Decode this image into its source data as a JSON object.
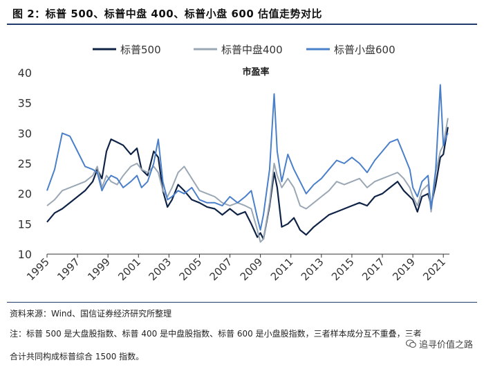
{
  "header": {
    "figure_title": "图 2：标普 500、标普中盘 400、标普小盘 600 估值走势对比"
  },
  "footer": {
    "source": "资料来源：Wind、国信证券经济研究所整理",
    "note_line1": "注：标普 500 是大盘股指数、标普 400 是中盘股指数、标普 600 是小盘股指数，三者样本成分互不重叠，三者",
    "note_line2": "合计共同构成标普综合 1500 指数。",
    "watermark": "追寻价值之路"
  },
  "chart_data": {
    "type": "line",
    "title": "市盈率",
    "xlabel": "",
    "ylabel": "",
    "xlim": [
      1995,
      2021.4
    ],
    "ylim": [
      10,
      40
    ],
    "yticks": [
      10,
      15,
      20,
      25,
      30,
      35,
      40
    ],
    "xticks": [
      "1995",
      "1997",
      "1999",
      "2001",
      "2003",
      "2005",
      "2007",
      "2009",
      "2011",
      "2013",
      "2015",
      "2017",
      "2019",
      "2021"
    ],
    "legend_position": "top",
    "series": [
      {
        "name": "标普500",
        "color": "#0f2346",
        "points": [
          [
            1995.0,
            15.3
          ],
          [
            1995.5,
            16.8
          ],
          [
            1996.0,
            17.5
          ],
          [
            1996.5,
            18.5
          ],
          [
            1997.0,
            19.5
          ],
          [
            1997.5,
            20.5
          ],
          [
            1998.0,
            22.0
          ],
          [
            1998.3,
            24.0
          ],
          [
            1998.6,
            22.5
          ],
          [
            1998.9,
            27.0
          ],
          [
            1999.2,
            29.0
          ],
          [
            1999.6,
            28.5
          ],
          [
            2000.0,
            28.0
          ],
          [
            2000.5,
            26.5
          ],
          [
            2000.9,
            27.5
          ],
          [
            2001.2,
            24.0
          ],
          [
            2001.6,
            23.0
          ],
          [
            2002.0,
            27.0
          ],
          [
            2002.3,
            26.0
          ],
          [
            2002.6,
            20.5
          ],
          [
            2002.9,
            17.8
          ],
          [
            2003.2,
            19.0
          ],
          [
            2003.6,
            21.5
          ],
          [
            2004.0,
            20.5
          ],
          [
            2004.5,
            19.0
          ],
          [
            2005.0,
            18.5
          ],
          [
            2005.5,
            17.8
          ],
          [
            2006.0,
            17.5
          ],
          [
            2006.5,
            16.5
          ],
          [
            2007.0,
            17.5
          ],
          [
            2007.5,
            16.5
          ],
          [
            2008.0,
            17.0
          ],
          [
            2008.4,
            15.0
          ],
          [
            2008.8,
            12.8
          ],
          [
            2009.0,
            13.5
          ],
          [
            2009.2,
            12.5
          ],
          [
            2009.6,
            18.0
          ],
          [
            2009.9,
            23.5
          ],
          [
            2010.1,
            21.0
          ],
          [
            2010.4,
            14.5
          ],
          [
            2010.8,
            15.0
          ],
          [
            2011.2,
            16.0
          ],
          [
            2011.6,
            14.0
          ],
          [
            2012.0,
            13.2
          ],
          [
            2012.5,
            14.5
          ],
          [
            2013.0,
            15.5
          ],
          [
            2013.5,
            16.5
          ],
          [
            2014.0,
            17.0
          ],
          [
            2014.5,
            17.5
          ],
          [
            2015.0,
            18.0
          ],
          [
            2015.5,
            18.5
          ],
          [
            2016.0,
            18.0
          ],
          [
            2016.5,
            19.5
          ],
          [
            2017.0,
            20.0
          ],
          [
            2017.5,
            21.0
          ],
          [
            2018.0,
            22.0
          ],
          [
            2018.4,
            20.5
          ],
          [
            2018.8,
            19.5
          ],
          [
            2019.0,
            19.0
          ],
          [
            2019.3,
            17.0
          ],
          [
            2019.6,
            19.5
          ],
          [
            2020.0,
            20.0
          ],
          [
            2020.2,
            18.0
          ],
          [
            2020.5,
            21.5
          ],
          [
            2020.8,
            26.0
          ],
          [
            2021.0,
            26.5
          ],
          [
            2021.2,
            29.5
          ],
          [
            2021.3,
            31.0
          ]
        ]
      },
      {
        "name": "标普中盘400",
        "color": "#9aa7b4",
        "points": [
          [
            1995.0,
            18.0
          ],
          [
            1995.5,
            19.0
          ],
          [
            1996.0,
            20.5
          ],
          [
            1996.5,
            21.0
          ],
          [
            1997.0,
            21.5
          ],
          [
            1997.5,
            22.0
          ],
          [
            1998.0,
            23.0
          ],
          [
            1998.3,
            24.5
          ],
          [
            1998.6,
            21.0
          ],
          [
            1998.9,
            23.0
          ],
          [
            1999.2,
            22.0
          ],
          [
            1999.6,
            21.5
          ],
          [
            2000.0,
            23.0
          ],
          [
            2000.5,
            24.5
          ],
          [
            2000.9,
            25.0
          ],
          [
            2001.2,
            24.0
          ],
          [
            2001.6,
            23.5
          ],
          [
            2002.0,
            24.5
          ],
          [
            2002.3,
            23.5
          ],
          [
            2002.6,
            20.5
          ],
          [
            2002.9,
            19.5
          ],
          [
            2003.2,
            21.0
          ],
          [
            2003.6,
            23.5
          ],
          [
            2004.0,
            24.5
          ],
          [
            2004.5,
            22.5
          ],
          [
            2005.0,
            20.5
          ],
          [
            2005.5,
            20.0
          ],
          [
            2006.0,
            19.5
          ],
          [
            2006.5,
            18.5
          ],
          [
            2007.0,
            18.0
          ],
          [
            2007.5,
            18.5
          ],
          [
            2008.0,
            18.0
          ],
          [
            2008.4,
            17.5
          ],
          [
            2008.8,
            14.0
          ],
          [
            2009.0,
            12.0
          ],
          [
            2009.2,
            12.5
          ],
          [
            2009.6,
            18.5
          ],
          [
            2009.9,
            25.0
          ],
          [
            2010.1,
            23.0
          ],
          [
            2010.4,
            21.0
          ],
          [
            2010.8,
            22.5
          ],
          [
            2011.2,
            21.0
          ],
          [
            2011.6,
            18.0
          ],
          [
            2012.0,
            17.5
          ],
          [
            2012.5,
            18.5
          ],
          [
            2013.0,
            19.5
          ],
          [
            2013.5,
            20.5
          ],
          [
            2014.0,
            22.0
          ],
          [
            2014.5,
            21.5
          ],
          [
            2015.0,
            22.0
          ],
          [
            2015.5,
            22.5
          ],
          [
            2016.0,
            21.0
          ],
          [
            2016.5,
            22.0
          ],
          [
            2017.0,
            22.5
          ],
          [
            2017.5,
            23.0
          ],
          [
            2018.0,
            23.5
          ],
          [
            2018.4,
            22.5
          ],
          [
            2018.8,
            21.0
          ],
          [
            2019.0,
            19.5
          ],
          [
            2019.3,
            18.0
          ],
          [
            2019.6,
            20.5
          ],
          [
            2020.0,
            21.5
          ],
          [
            2020.2,
            17.0
          ],
          [
            2020.5,
            23.5
          ],
          [
            2020.8,
            27.0
          ],
          [
            2021.0,
            28.0
          ],
          [
            2021.2,
            31.0
          ],
          [
            2021.3,
            32.5
          ]
        ]
      },
      {
        "name": "标普小盘600",
        "color": "#4a7fc9",
        "points": [
          [
            1995.0,
            20.5
          ],
          [
            1995.5,
            24.0
          ],
          [
            1996.0,
            30.0
          ],
          [
            1996.5,
            29.5
          ],
          [
            1997.0,
            27.0
          ],
          [
            1997.5,
            24.5
          ],
          [
            1998.0,
            24.0
          ],
          [
            1998.3,
            23.5
          ],
          [
            1998.6,
            20.5
          ],
          [
            1998.9,
            22.0
          ],
          [
            1999.2,
            23.0
          ],
          [
            1999.6,
            22.5
          ],
          [
            2000.0,
            21.0
          ],
          [
            2000.5,
            22.0
          ],
          [
            2000.9,
            23.0
          ],
          [
            2001.2,
            21.0
          ],
          [
            2001.6,
            22.0
          ],
          [
            2002.0,
            25.0
          ],
          [
            2002.3,
            29.0
          ],
          [
            2002.6,
            22.0
          ],
          [
            2002.9,
            19.0
          ],
          [
            2003.2,
            19.5
          ],
          [
            2003.6,
            20.5
          ],
          [
            2004.0,
            20.0
          ],
          [
            2004.5,
            21.0
          ],
          [
            2005.0,
            19.0
          ],
          [
            2005.5,
            18.5
          ],
          [
            2006.0,
            18.5
          ],
          [
            2006.5,
            18.0
          ],
          [
            2007.0,
            19.5
          ],
          [
            2007.5,
            18.5
          ],
          [
            2008.0,
            19.5
          ],
          [
            2008.4,
            20.5
          ],
          [
            2008.8,
            16.0
          ],
          [
            2009.0,
            14.0
          ],
          [
            2009.2,
            16.5
          ],
          [
            2009.6,
            24.0
          ],
          [
            2009.9,
            36.5
          ],
          [
            2010.1,
            27.0
          ],
          [
            2010.4,
            22.0
          ],
          [
            2010.8,
            26.5
          ],
          [
            2011.2,
            24.0
          ],
          [
            2011.6,
            22.0
          ],
          [
            2012.0,
            20.0
          ],
          [
            2012.5,
            21.5
          ],
          [
            2013.0,
            22.5
          ],
          [
            2013.5,
            24.0
          ],
          [
            2014.0,
            25.5
          ],
          [
            2014.5,
            25.0
          ],
          [
            2015.0,
            26.0
          ],
          [
            2015.5,
            25.0
          ],
          [
            2016.0,
            23.5
          ],
          [
            2016.5,
            25.5
          ],
          [
            2017.0,
            27.0
          ],
          [
            2017.5,
            28.5
          ],
          [
            2018.0,
            29.0
          ],
          [
            2018.4,
            26.5
          ],
          [
            2018.8,
            24.0
          ],
          [
            2019.0,
            21.0
          ],
          [
            2019.3,
            19.5
          ],
          [
            2019.6,
            22.0
          ],
          [
            2020.0,
            23.0
          ],
          [
            2020.2,
            17.5
          ],
          [
            2020.5,
            24.0
          ],
          [
            2020.8,
            38.0
          ],
          [
            2021.0,
            28.0
          ],
          [
            2021.2,
            29.5
          ],
          [
            2021.3,
            30.0
          ]
        ]
      }
    ]
  }
}
